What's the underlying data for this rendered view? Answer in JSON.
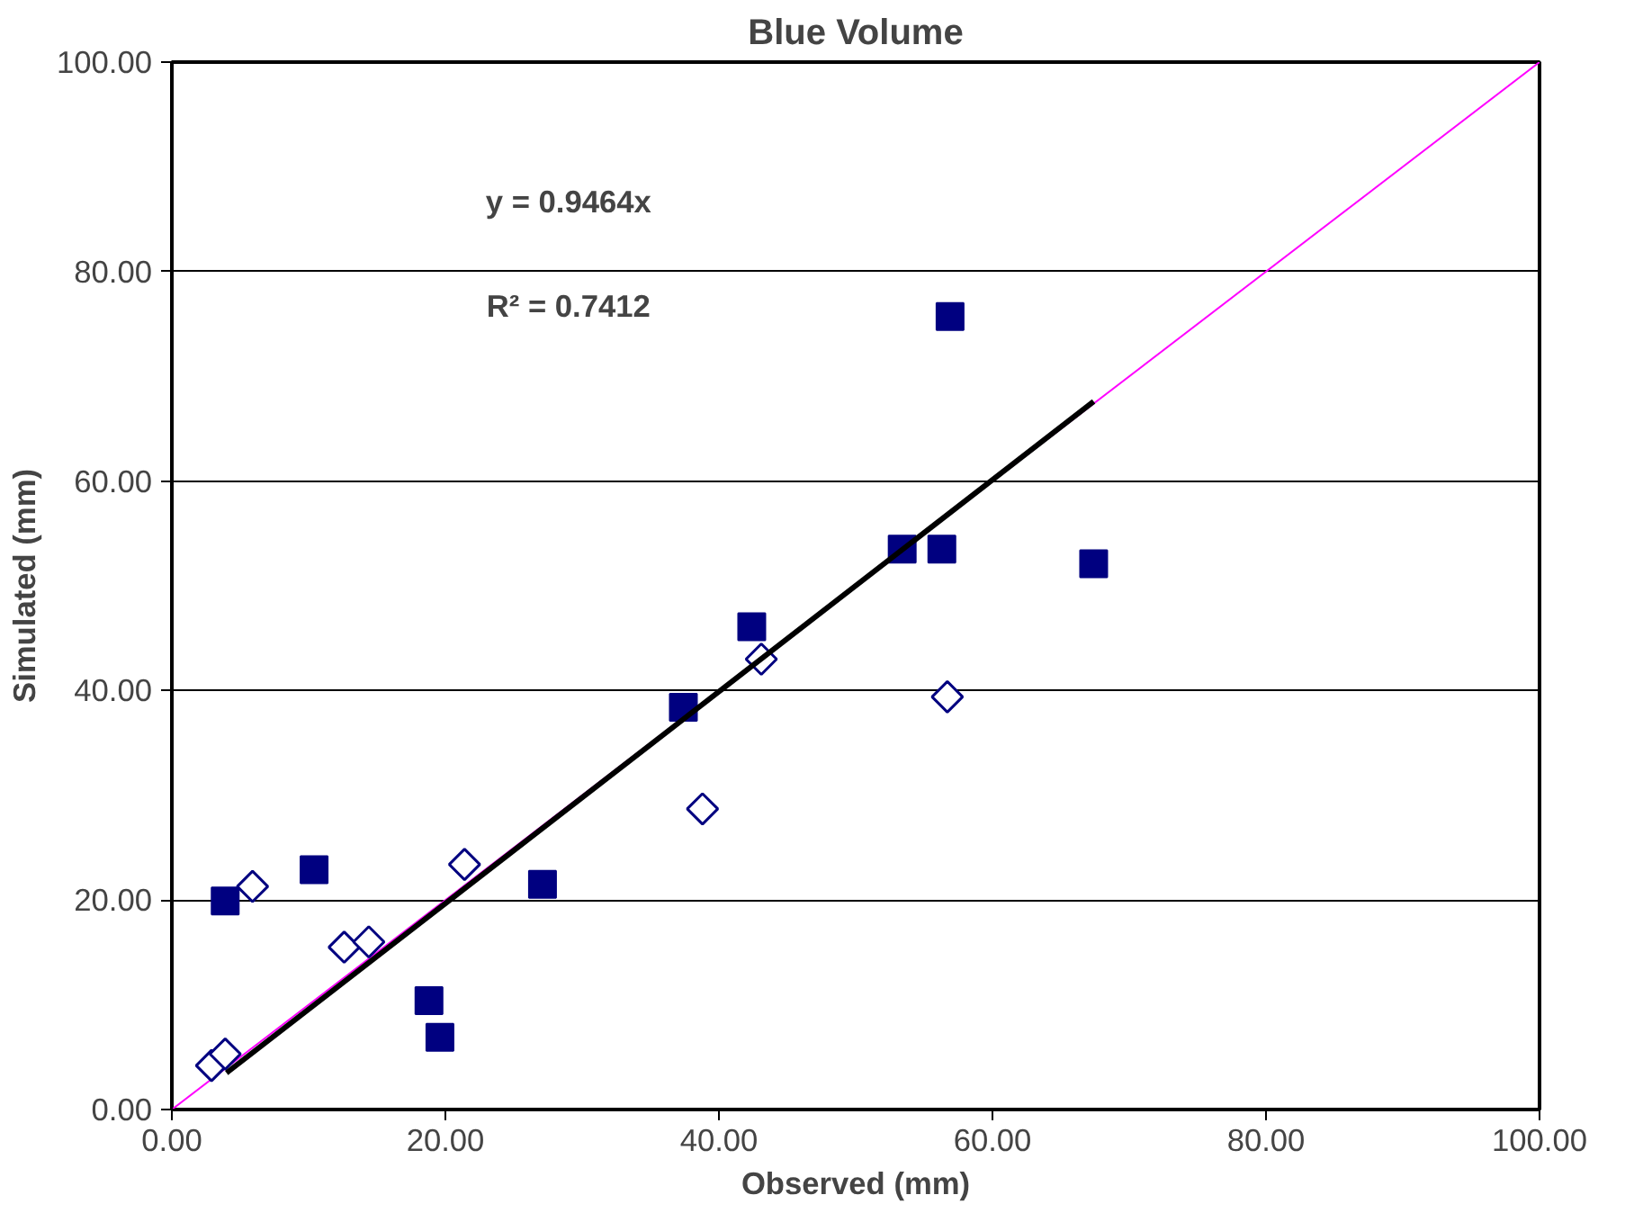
{
  "chart_data": {
    "type": "scatter",
    "title": "Blue Volume",
    "xlabel": "Observed (mm)",
    "ylabel": "Simulated (mm)",
    "xlim": [
      0,
      100
    ],
    "ylim": [
      0,
      100
    ],
    "xticks": [
      {
        "value": 0,
        "label": "0.00"
      },
      {
        "value": 20,
        "label": "20.00"
      },
      {
        "value": 40,
        "label": "40.00"
      },
      {
        "value": 60,
        "label": "60.00"
      },
      {
        "value": 80,
        "label": "80.00"
      },
      {
        "value": 100,
        "label": "100.00"
      }
    ],
    "yticks": [
      {
        "value": 0,
        "label": "0.00"
      },
      {
        "value": 20,
        "label": "20.00"
      },
      {
        "value": 40,
        "label": "40.00"
      },
      {
        "value": 60,
        "label": "60.00"
      },
      {
        "value": 80,
        "label": "80.00"
      },
      {
        "value": 100,
        "label": "100.00"
      }
    ],
    "grid": "y",
    "series": [
      {
        "type": "line",
        "color": "#ff00ff",
        "x": [
          0,
          100
        ],
        "values": [
          0,
          100
        ],
        "marker": "none"
      },
      {
        "color": "#000080",
        "marker": "square",
        "x": [
          3.9,
          10.4,
          18.8,
          19.6,
          27.1,
          37.4,
          42.4,
          53.4,
          56.3,
          56.9,
          67.4
        ],
        "values": [
          19.9,
          22.9,
          10.4,
          6.9,
          21.5,
          38.4,
          46.1,
          53.5,
          53.5,
          75.7,
          52.1
        ]
      },
      {
        "color": "#000080",
        "marker": "diamond",
        "x": [
          2.9,
          3.9,
          5.9,
          12.6,
          14.4,
          21.4,
          38.8,
          43.1,
          56.7
        ],
        "values": [
          4.2,
          5.3,
          21.3,
          15.5,
          16.0,
          23.4,
          28.7,
          43.0,
          39.4
        ]
      },
      {
        "type": "line",
        "color": "#000000",
        "x": [
          4,
          67.4
        ],
        "values": [
          3.5,
          67.6
        ],
        "marker": "none"
      }
    ],
    "annotations": [
      "y = 0.9464x",
      "R² = 0.7412"
    ]
  }
}
